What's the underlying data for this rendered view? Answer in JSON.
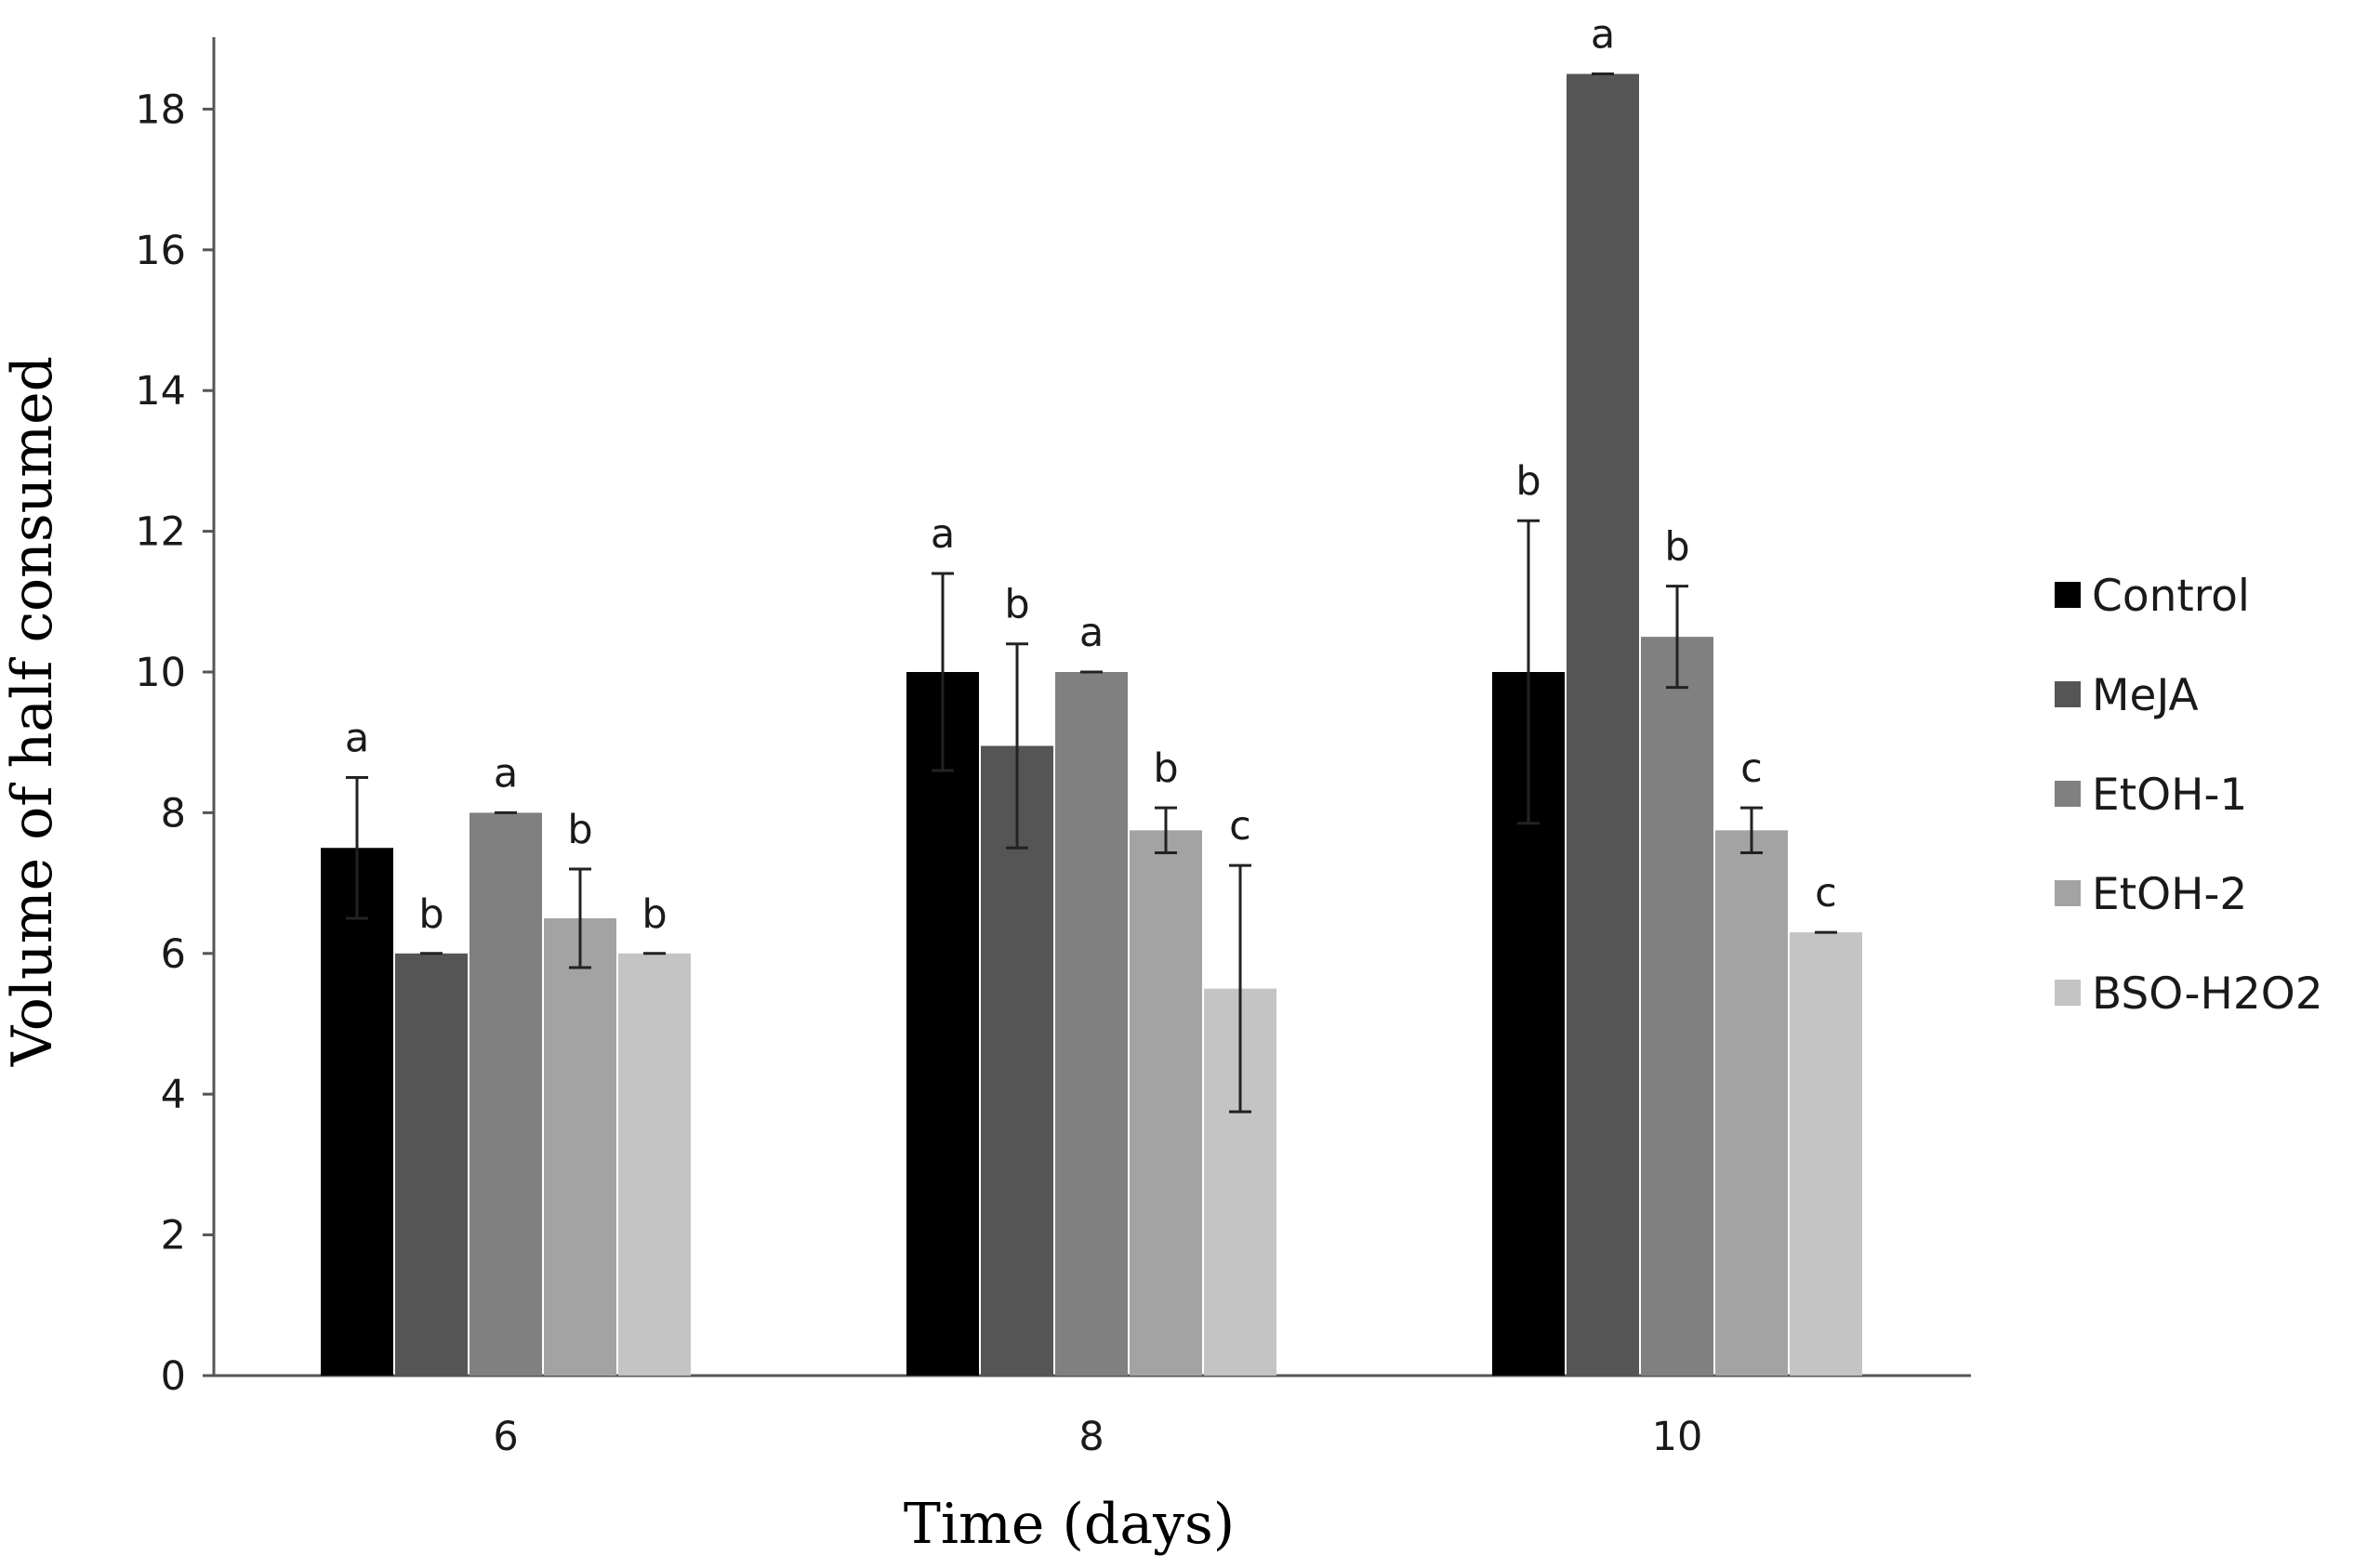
{
  "chart_data": {
    "type": "bar",
    "title": "",
    "xlabel": "Time (days)",
    "ylabel": "Volume of half consumed",
    "categories": [
      "6",
      "8",
      "10"
    ],
    "ylim": [
      0,
      19
    ],
    "yticks": [
      0,
      2,
      4,
      6,
      8,
      10,
      12,
      14,
      16,
      18
    ],
    "grid": false,
    "legend_position": "right",
    "series": [
      {
        "name": "Control",
        "color": "#000000",
        "values": [
          7.5,
          10.0,
          10.0
        ],
        "errors": [
          1.0,
          1.4,
          2.15
        ],
        "letters": [
          "a",
          "a",
          "b"
        ]
      },
      {
        "name": "MeJA",
        "color": "#555555",
        "values": [
          6.0,
          8.95,
          18.5
        ],
        "errors": [
          0,
          1.45,
          0
        ],
        "letters": [
          "b",
          "b",
          "a"
        ]
      },
      {
        "name": "EtOH-1",
        "color": "#808080",
        "values": [
          8.0,
          10.0,
          10.5
        ],
        "errors": [
          0,
          0,
          0.72
        ],
        "letters": [
          "a",
          "a",
          "b"
        ]
      },
      {
        "name": "EtOH-2",
        "color": "#a3a3a3",
        "values": [
          6.5,
          7.75,
          7.75
        ],
        "errors": [
          0.7,
          0.32,
          0.32
        ],
        "letters": [
          "b",
          "b",
          "c"
        ]
      },
      {
        "name": "BSO-H2O2",
        "color": "#c4c4c4",
        "values": [
          6.0,
          5.5,
          6.3
        ],
        "errors": [
          0,
          1.75,
          0
        ],
        "letters": [
          "b",
          "c",
          "c"
        ]
      }
    ]
  }
}
